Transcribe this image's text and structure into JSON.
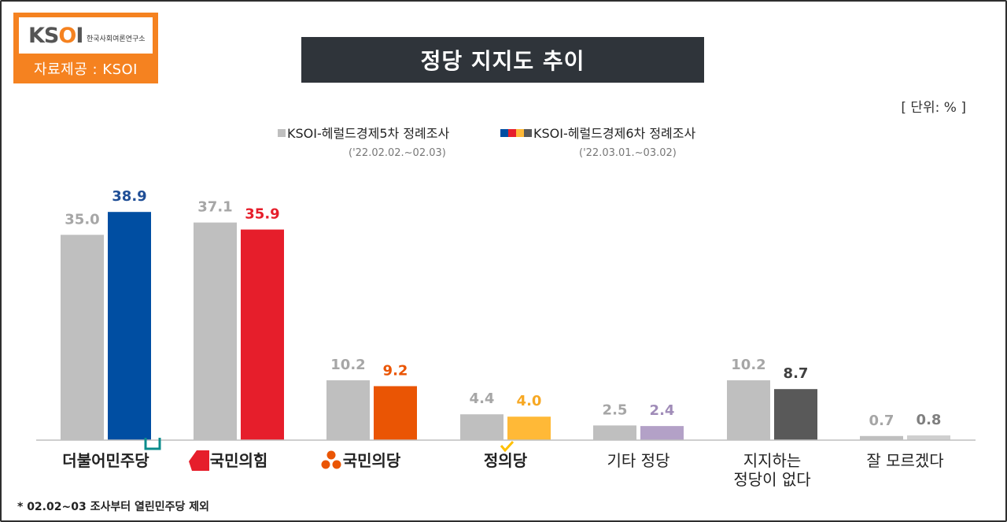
{
  "header": {
    "logo_text": "KSOI",
    "logo_sub": "한국사회여론연구소",
    "source": "자료제공 : KSOI",
    "title": "정당 지지도 추이",
    "unit": "[ 단위: % ]"
  },
  "legend": [
    {
      "label": "KSOI-헤럴드경제5차 정례조사",
      "period": "('22.02.02.~02.03)"
    },
    {
      "label": "KSOI-헤럴드경제6차 정례조사",
      "period": "('22.03.01.~03.02)"
    }
  ],
  "colors": {
    "wave5": "#bfbfbf",
    "democratic": "#004ea2",
    "ppp": "#e61e2b",
    "peoples": "#ea5504",
    "justice": "#ffb937",
    "other": "#b3a1c7",
    "none": "#595959",
    "dontknow": "#cfcfcf"
  },
  "chart_data": {
    "type": "bar",
    "categories": [
      "더불어민주당",
      "국민의힘",
      "국민의당",
      "정의당",
      "기타 정당",
      "지지하는 정당이 없다",
      "잘 모르겠다"
    ],
    "series": [
      {
        "name": "KSOI-헤럴드경제5차 정례조사",
        "values": [
          35.0,
          37.1,
          10.2,
          4.4,
          2.5,
          10.2,
          0.7
        ]
      },
      {
        "name": "KSOI-헤럴드경제6차 정례조사",
        "values": [
          38.9,
          35.9,
          9.2,
          4.0,
          2.4,
          8.7,
          0.8
        ]
      }
    ],
    "value_labels_1": [
      "35.0",
      "37.1",
      "10.2",
      "4.4",
      "2.5",
      "10.2",
      "0.7"
    ],
    "value_labels_2": [
      "38.9",
      "35.9",
      "9.2",
      "4.0",
      "2.4",
      "8.7",
      "0.8"
    ],
    "category_display": [
      {
        "line1": "더불어민주당",
        "line2": ""
      },
      {
        "line1": "국민의힘",
        "line2": ""
      },
      {
        "line1": "국민의당",
        "line2": ""
      },
      {
        "line1": "정의당",
        "line2": ""
      },
      {
        "line1": "기타 정당",
        "line2": ""
      },
      {
        "line1": "지지하는",
        "line2": "정당이 없다"
      },
      {
        "line1": "잘 모르겠다",
        "line2": ""
      }
    ],
    "series2_colors": [
      "#004ea2",
      "#e61e2b",
      "#ea5504",
      "#ffb937",
      "#b3a1c7",
      "#595959",
      "#cfcfcf"
    ],
    "value_label_colors_2": [
      "#1f4e96",
      "#e61e2b",
      "#ea5504",
      "#f7a823",
      "#a08cb8",
      "#404040",
      "#7f7f7f"
    ],
    "ylim": [
      0,
      45
    ]
  },
  "footnote": "* 02.02~03 조사부터 열린민주당 제외"
}
